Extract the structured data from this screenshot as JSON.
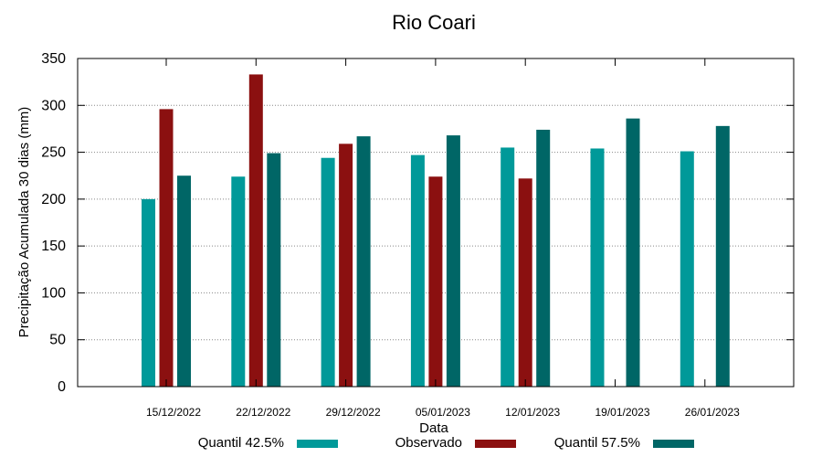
{
  "chart_data": {
    "type": "bar",
    "title": "Rio Coari",
    "xlabel": "Data",
    "ylabel": "Precipitação Acumulada 30 dias (mm)",
    "ylim": [
      0,
      350
    ],
    "yticks": [
      0,
      50,
      100,
      150,
      200,
      250,
      300,
      350
    ],
    "grid": true,
    "legend_position": "bottom",
    "categories": [
      "15/12/2022",
      "22/12/2022",
      "29/12/2022",
      "05/01/2023",
      "12/01/2023",
      "19/01/2023",
      "26/01/2023"
    ],
    "series": [
      {
        "name": "Quantil 42.5%",
        "color": "#009999",
        "values": [
          200,
          224,
          244,
          247,
          255,
          254,
          251
        ]
      },
      {
        "name": "Observado",
        "color": "#8b1010",
        "values": [
          296,
          333,
          259,
          224,
          222,
          null,
          null
        ]
      },
      {
        "name": "Quantil 57.5%",
        "color": "#006666",
        "values": [
          225,
          249,
          267,
          268,
          274,
          286,
          278
        ]
      }
    ]
  }
}
